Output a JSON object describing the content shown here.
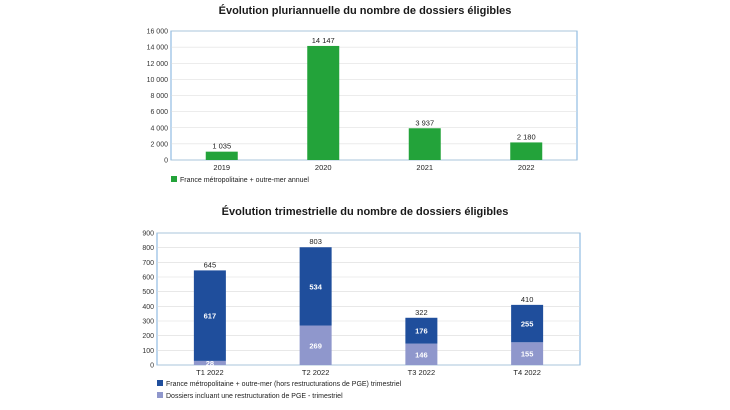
{
  "colors": {
    "annual": "#23a33a",
    "hors_pge": "#1f4e9c",
    "pge": "#8f97cc"
  },
  "chart_data": [
    {
      "type": "bar",
      "title": "Évolution pluriannuelle du nombre de dossiers éligibles",
      "categories": [
        "2019",
        "2020",
        "2021",
        "2022"
      ],
      "series": [
        {
          "name": "France métropolitaine + outre-mer annuel",
          "values": [
            1035,
            14147,
            3937,
            2180
          ],
          "labels": [
            "1 035",
            "14 147",
            "3 937",
            "2 180"
          ]
        }
      ],
      "ylim": [
        0,
        16000
      ],
      "yticks": [
        0,
        2000,
        4000,
        6000,
        8000,
        10000,
        12000,
        14000,
        16000
      ],
      "ytick_labels": [
        "0",
        "2 000",
        "4 000",
        "6 000",
        "8 000",
        "10 000",
        "12 000",
        "14 000",
        "16 000"
      ],
      "legend": "bottom-left"
    },
    {
      "type": "bar",
      "stacked": true,
      "title": "Évolution trimestrielle du nombre de dossiers éligibles",
      "categories": [
        "T1 2022",
        "T2 2022",
        "T3 2022",
        "T4 2022"
      ],
      "series": [
        {
          "name": "Dossiers incluant une restructuration de PGE - trimestriel",
          "values": [
            28,
            269,
            146,
            155
          ]
        },
        {
          "name": "France métropolitaine + outre-mer (hors restructurations de PGE) trimestriel",
          "values": [
            617,
            534,
            176,
            255
          ]
        }
      ],
      "totals": [
        645,
        803,
        322,
        410
      ],
      "ylim": [
        0,
        900
      ],
      "yticks": [
        0,
        100,
        200,
        300,
        400,
        500,
        600,
        700,
        800,
        900
      ],
      "legend": "bottom-left"
    }
  ]
}
